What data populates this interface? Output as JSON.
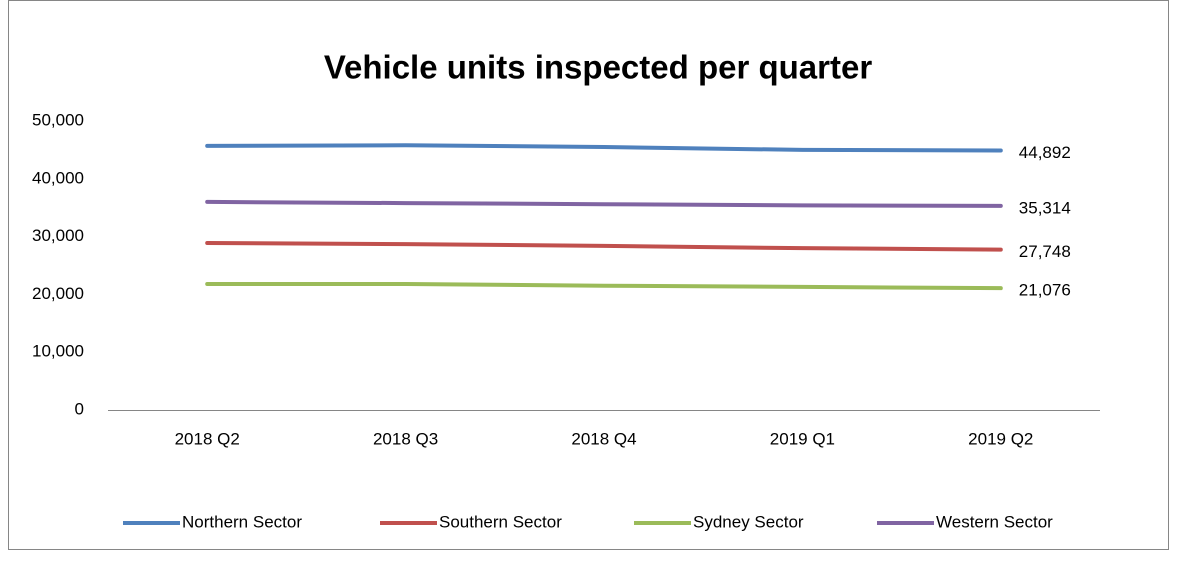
{
  "chart_data": {
    "type": "line",
    "title": "Vehicle units inspected per quarter",
    "categories": [
      "2018 Q2",
      "2018 Q3",
      "2018 Q4",
      "2019 Q1",
      "2019 Q2"
    ],
    "series": [
      {
        "name": "Northern Sector",
        "color": "#4f81bd",
        "values": [
          45700,
          45800,
          45500,
          45000,
          44892
        ],
        "value_labels": [
          null,
          null,
          null,
          null,
          "44,892"
        ]
      },
      {
        "name": "Southern Sector",
        "color": "#c0504d",
        "values": [
          28900,
          28700,
          28400,
          28000,
          27748
        ],
        "value_labels": [
          null,
          null,
          null,
          null,
          "27,748"
        ]
      },
      {
        "name": "Sydney Sector",
        "color": "#9bbb59",
        "values": [
          21800,
          21800,
          21500,
          21300,
          21076
        ],
        "value_labels": [
          null,
          null,
          null,
          null,
          "21,076"
        ]
      },
      {
        "name": "Western Sector",
        "color": "#8064a2",
        "values": [
          36000,
          35800,
          35600,
          35400,
          35314
        ],
        "value_labels": [
          null,
          null,
          null,
          null,
          "35,314"
        ]
      }
    ],
    "ylim": [
      0,
      50000
    ],
    "yticks": [
      0,
      {
        "value": 10000,
        "label": "10,000"
      },
      {
        "value": 20000,
        "label": "20,000"
      },
      {
        "value": 30000,
        "label": "30,000"
      },
      {
        "value": 40000,
        "label": "40,000"
      },
      {
        "value": 50000,
        "label": "50,000"
      }
    ],
    "grid": false,
    "legend": "bottom"
  }
}
